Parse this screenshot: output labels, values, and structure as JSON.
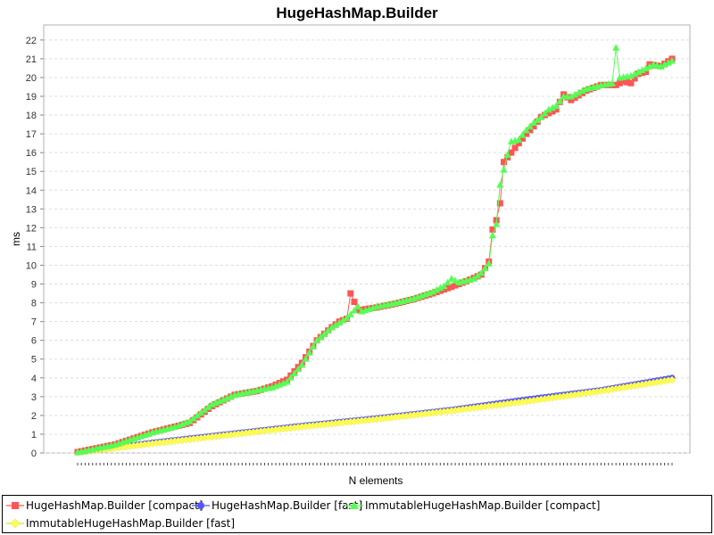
{
  "chart_data": {
    "type": "line",
    "title": "HugeHashMap.Builder",
    "xlabel": "N elements",
    "ylabel": "ms",
    "ylim": [
      0,
      22.8
    ],
    "y_ticks": [
      0,
      1,
      2,
      3,
      4,
      5,
      6,
      7,
      8,
      9,
      10,
      11,
      12,
      13,
      14,
      15,
      16,
      17,
      18,
      19,
      20,
      21,
      22
    ],
    "x_tick_labels_visible": false,
    "grid": true,
    "legend_position": "bottom",
    "n_points": 160,
    "series": [
      {
        "name": "HugeHashMap.Builder [compact]",
        "color": "#ff5555",
        "marker": "square",
        "anchors": [
          [
            0,
            0.05
          ],
          [
            10,
            0.45
          ],
          [
            20,
            1.1
          ],
          [
            26,
            1.4
          ],
          [
            30,
            1.6
          ],
          [
            36,
            2.5
          ],
          [
            42,
            3.1
          ],
          [
            48,
            3.3
          ],
          [
            52,
            3.55
          ],
          [
            56,
            3.9
          ],
          [
            60,
            4.8
          ],
          [
            64,
            6.0
          ],
          [
            68,
            6.7
          ],
          [
            70,
            7.0
          ],
          [
            72,
            7.15
          ],
          [
            73,
            8.5
          ],
          [
            75,
            7.6
          ],
          [
            80,
            7.75
          ],
          [
            85,
            7.95
          ],
          [
            90,
            8.2
          ],
          [
            95,
            8.5
          ],
          [
            100,
            8.85
          ],
          [
            104,
            9.15
          ],
          [
            108,
            9.5
          ],
          [
            110,
            10.2
          ],
          [
            111,
            11.9
          ],
          [
            112,
            12.4
          ],
          [
            113,
            13.3
          ],
          [
            114,
            15.5
          ],
          [
            116,
            16.0
          ],
          [
            118,
            16.5
          ],
          [
            120,
            17.0
          ],
          [
            122,
            17.4
          ],
          [
            124,
            17.9
          ],
          [
            128,
            18.3
          ],
          [
            130,
            19.1
          ],
          [
            132,
            18.8
          ],
          [
            136,
            19.3
          ],
          [
            140,
            19.6
          ],
          [
            144,
            19.6
          ],
          [
            146,
            19.8
          ],
          [
            148,
            19.7
          ],
          [
            150,
            20.2
          ],
          [
            152,
            20.3
          ],
          [
            153,
            20.7
          ],
          [
            156,
            20.6
          ],
          [
            159,
            21.0
          ]
        ],
        "spikes": []
      },
      {
        "name": "HugeHashMap.Builder [fast]",
        "color": "#5555ff",
        "marker": "circle",
        "anchors": [
          [
            0,
            0.02
          ],
          [
            20,
            0.55
          ],
          [
            40,
            1.0
          ],
          [
            60,
            1.45
          ],
          [
            80,
            1.85
          ],
          [
            100,
            2.3
          ],
          [
            120,
            2.85
          ],
          [
            140,
            3.35
          ],
          [
            159,
            4.0
          ]
        ],
        "spikes": []
      },
      {
        "name": "ImmutableHugeHashMap.Builder [compact]",
        "color": "#55ff55",
        "marker": "triangle",
        "anchors": [
          [
            0,
            0.05
          ],
          [
            10,
            0.45
          ],
          [
            20,
            1.1
          ],
          [
            26,
            1.4
          ],
          [
            30,
            1.7
          ],
          [
            36,
            2.6
          ],
          [
            42,
            3.1
          ],
          [
            48,
            3.35
          ],
          [
            52,
            3.5
          ],
          [
            56,
            3.8
          ],
          [
            60,
            4.7
          ],
          [
            64,
            6.0
          ],
          [
            68,
            6.7
          ],
          [
            72,
            7.2
          ],
          [
            74,
            7.6
          ],
          [
            75,
            7.8
          ],
          [
            76,
            7.55
          ],
          [
            80,
            7.8
          ],
          [
            85,
            8.0
          ],
          [
            90,
            8.25
          ],
          [
            95,
            8.6
          ],
          [
            98,
            8.9
          ],
          [
            100,
            9.3
          ],
          [
            102,
            9.1
          ],
          [
            106,
            9.3
          ],
          [
            108,
            9.6
          ],
          [
            110,
            10.1
          ],
          [
            111,
            11.6
          ],
          [
            112,
            12.2
          ],
          [
            113,
            14.3
          ],
          [
            114,
            15.1
          ],
          [
            115,
            15.9
          ],
          [
            116,
            16.6
          ],
          [
            118,
            16.7
          ],
          [
            120,
            17.2
          ],
          [
            122,
            17.6
          ],
          [
            124,
            17.9
          ],
          [
            126,
            18.3
          ],
          [
            128,
            18.5
          ],
          [
            130,
            19.0
          ],
          [
            132,
            19.0
          ],
          [
            134,
            19.2
          ],
          [
            136,
            19.4
          ],
          [
            140,
            19.6
          ],
          [
            143,
            19.7
          ],
          [
            144,
            21.6
          ],
          [
            145,
            20.0
          ],
          [
            148,
            20.1
          ],
          [
            150,
            20.3
          ],
          [
            152,
            20.5
          ],
          [
            154,
            20.7
          ],
          [
            156,
            20.6
          ],
          [
            159,
            20.9
          ]
        ],
        "spikes": []
      },
      {
        "name": "ImmutableHugeHashMap.Builder [fast]",
        "color": "#ffff55",
        "marker": "diamond",
        "anchors": [
          [
            0,
            0.02
          ],
          [
            20,
            0.5
          ],
          [
            40,
            0.95
          ],
          [
            60,
            1.4
          ],
          [
            80,
            1.8
          ],
          [
            100,
            2.25
          ],
          [
            120,
            2.75
          ],
          [
            140,
            3.3
          ],
          [
            159,
            3.9
          ]
        ],
        "spikes": []
      }
    ]
  }
}
